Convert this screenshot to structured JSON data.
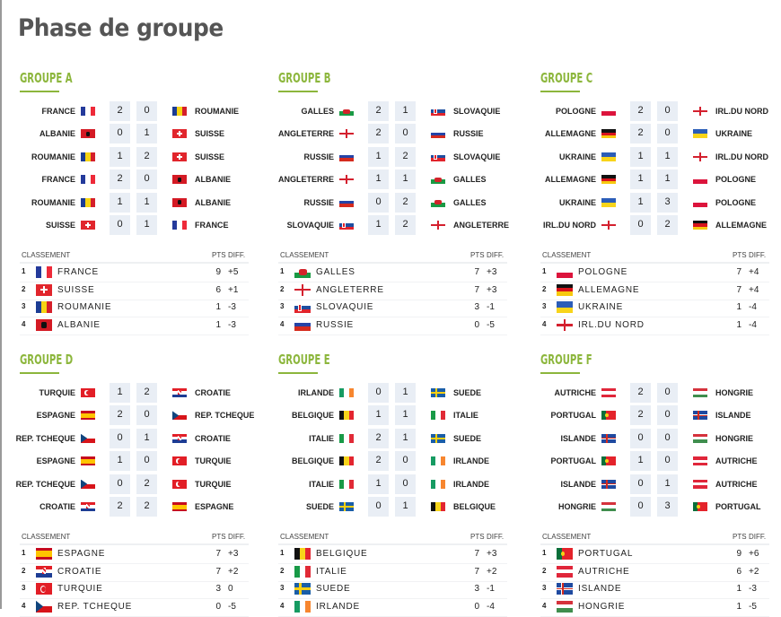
{
  "page_title": "Phase de groupe",
  "labels": {
    "standings": "CLASSEMENT",
    "pts": "PTS",
    "diff": "DIFF."
  },
  "accent_color": "#8cb63c",
  "groups": [
    {
      "name": "GROUPE A",
      "matches": [
        {
          "home": "FRANCE",
          "home_flag": "fr",
          "home_score": "2",
          "away_score": "0",
          "away": "ROUMANIE",
          "away_flag": "ro"
        },
        {
          "home": "ALBANIE",
          "home_flag": "al",
          "home_score": "0",
          "away_score": "1",
          "away": "SUISSE",
          "away_flag": "ch"
        },
        {
          "home": "ROUMANIE",
          "home_flag": "ro",
          "home_score": "1",
          "away_score": "2",
          "away": "SUISSE",
          "away_flag": "ch"
        },
        {
          "home": "FRANCE",
          "home_flag": "fr",
          "home_score": "2",
          "away_score": "0",
          "away": "ALBANIE",
          "away_flag": "al"
        },
        {
          "home": "ROUMANIE",
          "home_flag": "ro",
          "home_score": "1",
          "away_score": "1",
          "away": "ALBANIE",
          "away_flag": "al"
        },
        {
          "home": "SUISSE",
          "home_flag": "ch",
          "home_score": "0",
          "away_score": "1",
          "away": "FRANCE",
          "away_flag": "fr"
        }
      ],
      "standings": [
        {
          "rank": "1",
          "team": "FRANCE",
          "flag": "fr",
          "pts": "9",
          "diff": "+5"
        },
        {
          "rank": "2",
          "team": "SUISSE",
          "flag": "ch",
          "pts": "6",
          "diff": "+1"
        },
        {
          "rank": "3",
          "team": "ROUMANIE",
          "flag": "ro",
          "pts": "1",
          "diff": "-3"
        },
        {
          "rank": "4",
          "team": "ALBANIE",
          "flag": "al",
          "pts": "1",
          "diff": "-3"
        }
      ]
    },
    {
      "name": "GROUPE B",
      "matches": [
        {
          "home": "GALLES",
          "home_flag": "wal",
          "home_score": "2",
          "away_score": "1",
          "away": "SLOVAQUIE",
          "away_flag": "sk"
        },
        {
          "home": "ANGLETERRE",
          "home_flag": "en",
          "home_score": "2",
          "away_score": "0",
          "away": "RUSSIE",
          "away_flag": "ru"
        },
        {
          "home": "RUSSIE",
          "home_flag": "ru",
          "home_score": "1",
          "away_score": "2",
          "away": "SLOVAQUIE",
          "away_flag": "sk"
        },
        {
          "home": "ANGLETERRE",
          "home_flag": "en",
          "home_score": "1",
          "away_score": "1",
          "away": "GALLES",
          "away_flag": "wal"
        },
        {
          "home": "RUSSIE",
          "home_flag": "ru",
          "home_score": "0",
          "away_score": "2",
          "away": "GALLES",
          "away_flag": "wal"
        },
        {
          "home": "SLOVAQUIE",
          "home_flag": "sk",
          "home_score": "1",
          "away_score": "2",
          "away": "ANGLETERRE",
          "away_flag": "en"
        }
      ],
      "standings": [
        {
          "rank": "1",
          "team": "GALLES",
          "flag": "wal",
          "pts": "7",
          "diff": "+3"
        },
        {
          "rank": "2",
          "team": "ANGLETERRE",
          "flag": "en",
          "pts": "7",
          "diff": "+3"
        },
        {
          "rank": "3",
          "team": "SLOVAQUIE",
          "flag": "sk",
          "pts": "3",
          "diff": "-1"
        },
        {
          "rank": "4",
          "team": "RUSSIE",
          "flag": "ru",
          "pts": "0",
          "diff": "-5"
        }
      ]
    },
    {
      "name": "GROUPE C",
      "matches": [
        {
          "home": "POLOGNE",
          "home_flag": "pl",
          "home_score": "2",
          "away_score": "0",
          "away": "IRL.DU NORD",
          "away_flag": "nir"
        },
        {
          "home": "ALLEMAGNE",
          "home_flag": "de",
          "home_score": "2",
          "away_score": "0",
          "away": "UKRAINE",
          "away_flag": "ua"
        },
        {
          "home": "UKRAINE",
          "home_flag": "ua",
          "home_score": "1",
          "away_score": "1",
          "away": "IRL.DU NORD",
          "away_flag": "nir"
        },
        {
          "home": "ALLEMAGNE",
          "home_flag": "de",
          "home_score": "1",
          "away_score": "1",
          "away": "POLOGNE",
          "away_flag": "pl"
        },
        {
          "home": "UKRAINE",
          "home_flag": "ua",
          "home_score": "1",
          "away_score": "3",
          "away": "POLOGNE",
          "away_flag": "pl"
        },
        {
          "home": "IRL.DU NORD",
          "home_flag": "nir",
          "home_score": "0",
          "away_score": "2",
          "away": "ALLEMAGNE",
          "away_flag": "de"
        }
      ],
      "standings": [
        {
          "rank": "1",
          "team": "POLOGNE",
          "flag": "pl",
          "pts": "7",
          "diff": "+4"
        },
        {
          "rank": "2",
          "team": "ALLEMAGNE",
          "flag": "de",
          "pts": "7",
          "diff": "+4"
        },
        {
          "rank": "3",
          "team": "UKRAINE",
          "flag": "ua",
          "pts": "1",
          "diff": "-4"
        },
        {
          "rank": "4",
          "team": "IRL.DU NORD",
          "flag": "nir",
          "pts": "1",
          "diff": "-4"
        }
      ]
    },
    {
      "name": "GROUPE D",
      "matches": [
        {
          "home": "TURQUIE",
          "home_flag": "tr",
          "home_score": "1",
          "away_score": "2",
          "away": "CROATIE",
          "away_flag": "hr"
        },
        {
          "home": "ESPAGNE",
          "home_flag": "es",
          "home_score": "2",
          "away_score": "0",
          "away": "REP. TCHEQUE",
          "away_flag": "cz"
        },
        {
          "home": "REP. TCHEQUE",
          "home_flag": "cz",
          "home_score": "0",
          "away_score": "1",
          "away": "CROATIE",
          "away_flag": "hr"
        },
        {
          "home": "ESPAGNE",
          "home_flag": "es",
          "home_score": "1",
          "away_score": "0",
          "away": "TURQUIE",
          "away_flag": "tr"
        },
        {
          "home": "REP. TCHEQUE",
          "home_flag": "cz",
          "home_score": "0",
          "away_score": "2",
          "away": "TURQUIE",
          "away_flag": "tr"
        },
        {
          "home": "CROATIE",
          "home_flag": "hr",
          "home_score": "2",
          "away_score": "2",
          "away": "ESPAGNE",
          "away_flag": "es"
        }
      ],
      "standings": [
        {
          "rank": "1",
          "team": "ESPAGNE",
          "flag": "es",
          "pts": "7",
          "diff": "+3"
        },
        {
          "rank": "2",
          "team": "CROATIE",
          "flag": "hr",
          "pts": "7",
          "diff": "+2"
        },
        {
          "rank": "3",
          "team": "TURQUIE",
          "flag": "tr",
          "pts": "3",
          "diff": "0"
        },
        {
          "rank": "4",
          "team": "REP. TCHEQUE",
          "flag": "cz",
          "pts": "0",
          "diff": "-5"
        }
      ]
    },
    {
      "name": "GROUPE E",
      "matches": [
        {
          "home": "IRLANDE",
          "home_flag": "ie",
          "home_score": "0",
          "away_score": "1",
          "away": "SUEDE",
          "away_flag": "se"
        },
        {
          "home": "BELGIQUE",
          "home_flag": "be",
          "home_score": "1",
          "away_score": "1",
          "away": "ITALIE",
          "away_flag": "it"
        },
        {
          "home": "ITALIE",
          "home_flag": "it",
          "home_score": "2",
          "away_score": "1",
          "away": "SUEDE",
          "away_flag": "se"
        },
        {
          "home": "BELGIQUE",
          "home_flag": "be",
          "home_score": "2",
          "away_score": "0",
          "away": "IRLANDE",
          "away_flag": "ie"
        },
        {
          "home": "ITALIE",
          "home_flag": "it",
          "home_score": "1",
          "away_score": "0",
          "away": "IRLANDE",
          "away_flag": "ie"
        },
        {
          "home": "SUEDE",
          "home_flag": "se",
          "home_score": "0",
          "away_score": "1",
          "away": "BELGIQUE",
          "away_flag": "be"
        }
      ],
      "standings": [
        {
          "rank": "1",
          "team": "BELGIQUE",
          "flag": "be",
          "pts": "7",
          "diff": "+3"
        },
        {
          "rank": "2",
          "team": "ITALIE",
          "flag": "it",
          "pts": "7",
          "diff": "+2"
        },
        {
          "rank": "3",
          "team": "SUEDE",
          "flag": "se",
          "pts": "3",
          "diff": "-1"
        },
        {
          "rank": "4",
          "team": "IRLANDE",
          "flag": "ie",
          "pts": "0",
          "diff": "-4"
        }
      ]
    },
    {
      "name": "GROUPE F",
      "matches": [
        {
          "home": "AUTRICHE",
          "home_flag": "at",
          "home_score": "2",
          "away_score": "0",
          "away": "HONGRIE",
          "away_flag": "hu"
        },
        {
          "home": "PORTUGAL",
          "home_flag": "pt",
          "home_score": "2",
          "away_score": "0",
          "away": "ISLANDE",
          "away_flag": "is"
        },
        {
          "home": "ISLANDE",
          "home_flag": "is",
          "home_score": "0",
          "away_score": "0",
          "away": "HONGRIE",
          "away_flag": "hu"
        },
        {
          "home": "PORTUGAL",
          "home_flag": "pt",
          "home_score": "1",
          "away_score": "0",
          "away": "AUTRICHE",
          "away_flag": "at"
        },
        {
          "home": "ISLANDE",
          "home_flag": "is",
          "home_score": "0",
          "away_score": "1",
          "away": "AUTRICHE",
          "away_flag": "at"
        },
        {
          "home": "HONGRIE",
          "home_flag": "hu",
          "home_score": "0",
          "away_score": "3",
          "away": "PORTUGAL",
          "away_flag": "pt"
        }
      ],
      "standings": [
        {
          "rank": "1",
          "team": "PORTUGAL",
          "flag": "pt",
          "pts": "9",
          "diff": "+6"
        },
        {
          "rank": "2",
          "team": "AUTRICHE",
          "flag": "at",
          "pts": "6",
          "diff": "+2"
        },
        {
          "rank": "3",
          "team": "ISLANDE",
          "flag": "is",
          "pts": "1",
          "diff": "-3"
        },
        {
          "rank": "4",
          "team": "HONGRIE",
          "flag": "hu",
          "pts": "1",
          "diff": "-5"
        }
      ]
    }
  ]
}
